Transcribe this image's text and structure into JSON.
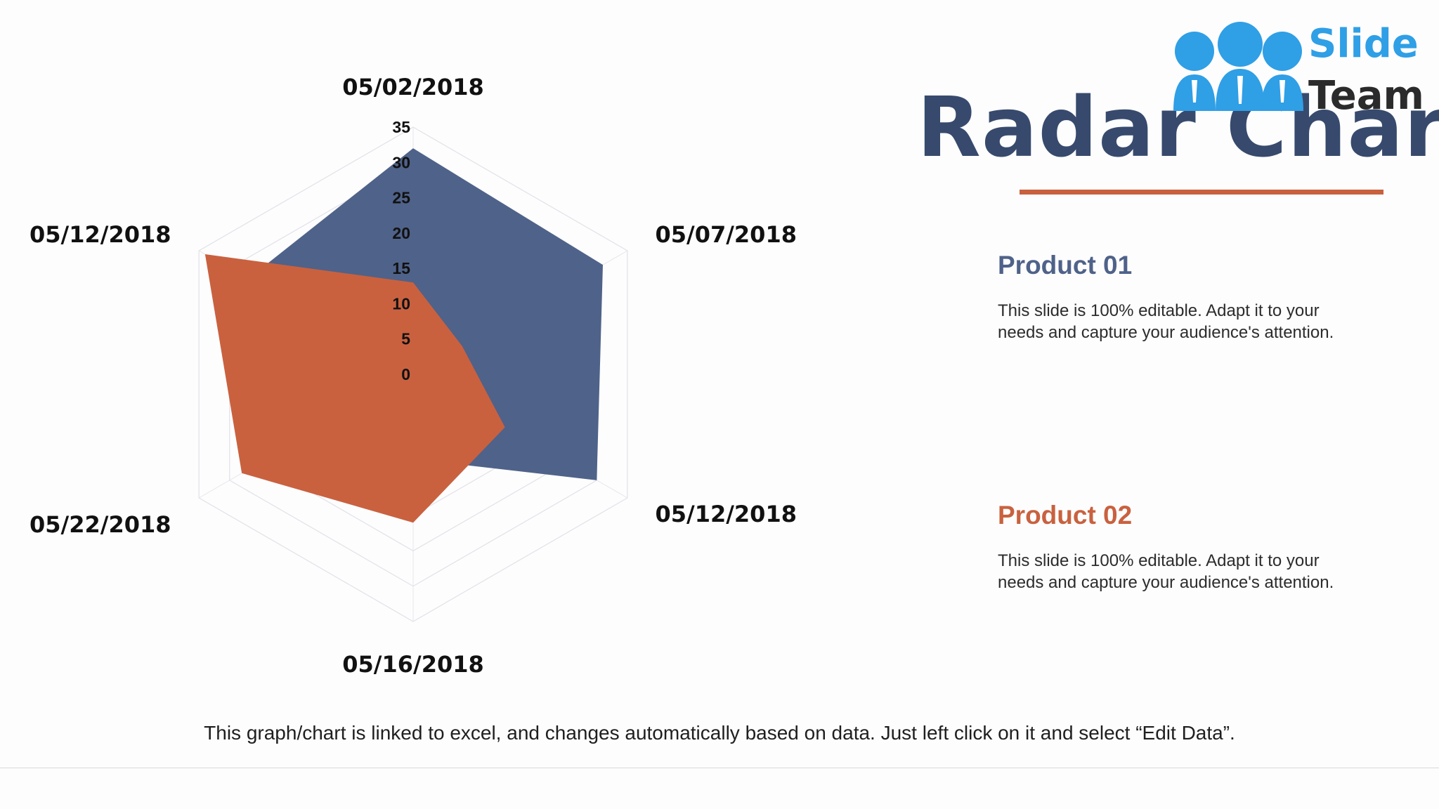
{
  "slide": {
    "title": "Radar Chart",
    "accent_color": "#c9613f",
    "footer_note": "This graph/chart is linked to excel, and changes automatically based on data. Just left click on it and select “Edit Data”."
  },
  "logo": {
    "line1": "Slide",
    "line2": "Team",
    "icon": "people-group-icon"
  },
  "products": [
    {
      "title": "Product 01",
      "color": "#4f6289",
      "description": "This slide is 100% editable. Adapt it to your needs and capture your audience's attention."
    },
    {
      "title": "Product 02",
      "color": "#c9613f",
      "description": "This slide is 100% editable. Adapt it to your needs and capture your audience's attention."
    }
  ],
  "chart_data": {
    "type": "radar",
    "categories": [
      "05/02/2018",
      "05/07/2018",
      "05/12/2018",
      "05/16/2018",
      "05/22/2018",
      "05/12/2018"
    ],
    "axis_ticks": [
      "0",
      "5",
      "10",
      "15",
      "20",
      "25",
      "30",
      "35"
    ],
    "rlim": [
      0,
      35
    ],
    "grid": true,
    "series": [
      {
        "name": "Product 01",
        "color": "#4f6289",
        "values": [
          32,
          31,
          30,
          12,
          12,
          27
        ]
      },
      {
        "name": "Product 02",
        "color": "#c9613f",
        "values": [
          13,
          8,
          15,
          21,
          28,
          34
        ]
      }
    ]
  }
}
